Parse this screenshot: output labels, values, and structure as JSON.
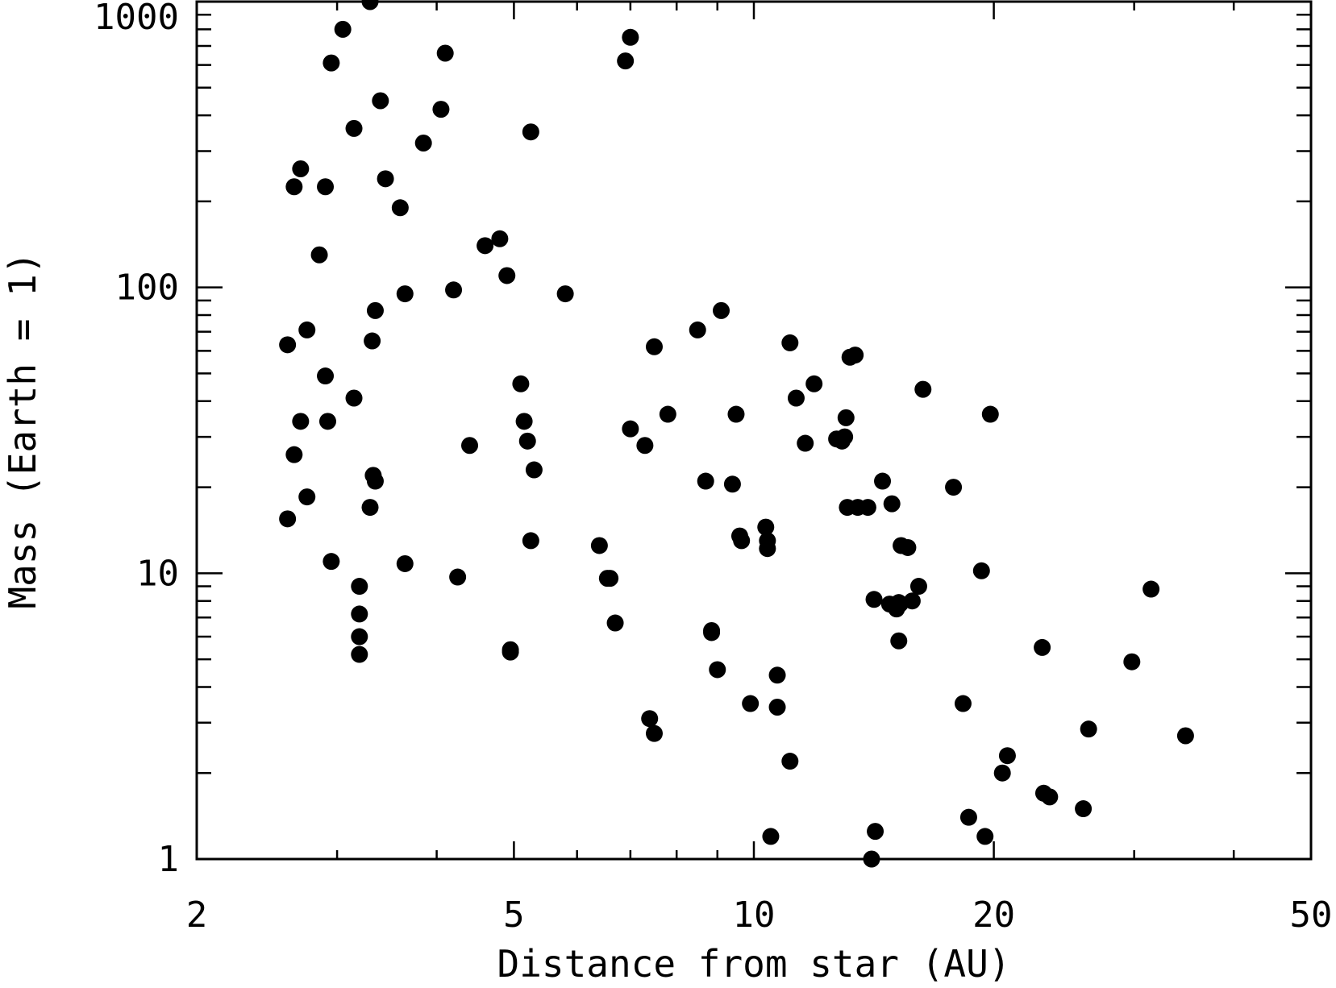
{
  "chart_data": {
    "type": "scatter",
    "title": "",
    "xlabel": "Distance from star (AU)",
    "ylabel": "Mass (Earth = 1)",
    "xscale": "log",
    "yscale": "log",
    "xlim": [
      2,
      50
    ],
    "ylim": [
      1,
      1000
    ],
    "x_tick_labels": [
      "2",
      "5",
      "10",
      "20",
      "50"
    ],
    "x_ticks": [
      2,
      5,
      10,
      20,
      50
    ],
    "y_tick_labels": [
      "1",
      "10",
      "100",
      "1000"
    ],
    "y_ticks": [
      1,
      10,
      100,
      1000
    ],
    "grid": false,
    "legend": "none",
    "marker_color": "#000000",
    "series": [
      {
        "x": [
          3.3,
          3.05,
          2.95,
          4.1,
          3.4,
          3.15,
          3.85,
          4.05,
          5.25,
          3.45,
          2.7,
          2.65,
          3.6,
          2.9,
          2.85,
          4.6,
          4.8,
          4.9,
          3.65,
          4.2,
          3.35,
          5.8,
          2.6,
          2.75,
          3.32,
          2.9,
          2.92,
          3.15,
          5.15,
          2.7,
          5.1,
          3.35,
          5.2,
          3.33,
          4.4,
          5.3,
          5.25,
          2.65,
          2.75,
          3.3,
          2.6,
          2.95,
          3.65,
          4.25,
          3.2,
          3.2,
          3.2,
          3.2,
          4.95,
          4.95,
          7.0,
          6.9,
          8.5,
          9.1,
          7.5,
          11.1,
          7.0,
          7.3,
          7.8,
          9.5,
          8.7,
          9.4,
          6.4,
          6.6,
          6.55,
          6.7,
          9.6,
          9.65,
          10.35,
          10.4,
          10.4,
          8.85,
          8.85,
          9.0,
          9.9,
          10.7,
          10.7,
          11.1,
          7.4,
          7.5,
          10.5,
          11.3,
          11.6,
          11.9,
          12.7,
          12.9,
          13.2,
          13.4,
          13.9,
          14.5,
          13.1,
          14.9,
          15.3,
          15.6,
          16.1,
          16.3,
          13.0,
          13.05,
          13.5,
          14.15,
          14.8,
          15.1,
          15.25,
          15.2,
          15.0,
          15.2,
          15.8,
          17.8,
          18.3,
          18.6,
          19.3,
          19.5,
          19.8,
          20.5,
          20.8,
          23.0,
          23.1,
          23.5,
          25.9,
          26.3,
          29.8,
          31.5,
          34.8,
          14.2,
          14.05
        ],
        "y": [
          1000,
          800,
          610,
          660,
          450,
          360,
          320,
          420,
          350,
          240,
          260,
          225,
          190,
          225,
          130,
          140,
          148,
          110,
          95,
          98,
          83,
          95,
          63,
          71,
          65,
          49,
          34,
          41,
          34,
          34,
          46,
          21,
          29,
          22,
          28,
          23,
          13,
          26,
          18.5,
          17,
          15.5,
          11,
          10.8,
          9.7,
          9.0,
          7.2,
          6.0,
          5.2,
          5.4,
          5.3,
          750,
          620,
          71,
          83,
          62,
          64,
          32,
          28,
          36,
          36,
          21,
          20.5,
          12.5,
          9.6,
          9.6,
          6.7,
          13.5,
          13,
          14.5,
          13,
          12.2,
          6.3,
          6.2,
          4.6,
          3.5,
          4.4,
          3.4,
          2.2,
          3.1,
          2.75,
          1.2,
          41,
          28.5,
          46,
          29.5,
          29,
          57,
          58,
          17,
          21,
          17,
          17.5,
          12.5,
          12.3,
          9,
          44,
          30,
          35,
          17,
          8.1,
          7.8,
          7.5,
          7.8,
          5.8,
          7.7,
          7.9,
          8.0,
          20,
          3.5,
          1.4,
          10.2,
          1.2,
          36,
          2.0,
          2.3,
          5.5,
          1.7,
          1.65,
          1.5,
          2.85,
          4.9,
          8.8,
          2.7,
          1.25,
          1.0
        ]
      }
    ]
  }
}
